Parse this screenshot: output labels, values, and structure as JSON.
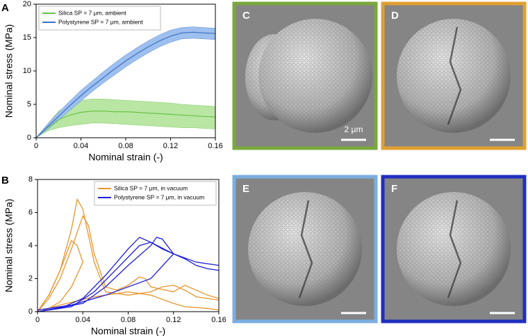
{
  "chart_data": [
    {
      "type": "line",
      "panel": "A",
      "xlabel": "Nominal strain (-)",
      "ylabel": "Nominal stress (MPa)",
      "x": [
        0,
        0.01,
        0.02,
        0.03,
        0.04,
        0.05,
        0.06,
        0.07,
        0.08,
        0.09,
        0.1,
        0.11,
        0.12,
        0.13,
        0.14,
        0.15,
        0.16
      ],
      "xlim": [
        0,
        0.16
      ],
      "xticks": [
        0,
        0.04,
        0.08,
        0.12,
        0.16
      ],
      "ylim": [
        0,
        20
      ],
      "yticks": [
        0,
        5,
        10,
        15,
        20
      ],
      "legend": "upper left",
      "series": [
        {
          "name": "Silica SP = 7 μm, ambient",
          "color": "#6cc24a",
          "band_color": "#b9e6a3",
          "values": [
            0,
            1.5,
            2.7,
            3.4,
            3.8,
            4,
            4,
            3.9,
            3.9,
            3.8,
            3.7,
            3.6,
            3.5,
            3.4,
            3.3,
            3.2,
            3.1
          ],
          "upper": [
            0,
            2,
            4,
            5,
            5.6,
            5.8,
            5.8,
            5.7,
            5.6,
            5.5,
            5.4,
            5.3,
            5.2,
            5,
            4.9,
            4.8,
            4.7
          ],
          "lower": [
            0,
            1,
            1.5,
            1.8,
            2,
            2.2,
            2.2,
            2.1,
            2,
            1.9,
            1.8,
            1.7,
            1.6,
            1.5,
            1.5,
            1.4,
            1.3
          ]
        },
        {
          "name": "Polystyrene SP = 7 μm, ambient",
          "color": "#3f6fc4",
          "band_color": "#9dc0ef",
          "values": [
            0,
            1.6,
            3.2,
            4.8,
            6.3,
            7.7,
            9,
            10.3,
            11.5,
            12.6,
            13.6,
            14.5,
            15.2,
            15.7,
            15.8,
            15.7,
            15.6
          ],
          "upper": [
            0,
            2,
            3.8,
            5.5,
            7.1,
            8.5,
            9.9,
            11.2,
            12.4,
            13.5,
            14.5,
            15.4,
            16.1,
            16.5,
            16.6,
            16.5,
            16.4
          ],
          "lower": [
            0,
            1.2,
            2.6,
            4.1,
            5.5,
            6.9,
            8.2,
            9.4,
            10.6,
            11.7,
            12.7,
            13.6,
            14.3,
            14.8,
            14.9,
            14.8,
            14.7
          ]
        }
      ]
    },
    {
      "type": "line",
      "panel": "B",
      "xlabel": "Nominal strain (-)",
      "ylabel": "Nominal stress (MPa)",
      "xlim": [
        0,
        0.16
      ],
      "xticks": [
        0,
        0.04,
        0.08,
        0.12,
        0.16
      ],
      "ylim": [
        0,
        8
      ],
      "yticks": [
        0,
        2,
        4,
        6,
        8
      ],
      "legend": "upper right",
      "series": [
        {
          "name": "Silica SP = 7 μm, in vacuum",
          "color": "#e8952b",
          "curves": [
            {
              "x": [
                0,
                0.01,
                0.02,
                0.03,
                0.035,
                0.04,
                0.05,
                0.06,
                0.08,
                0.1,
                0.11,
                0.12,
                0.13,
                0.14,
                0.16
              ],
              "y": [
                0,
                1,
                2.5,
                5,
                6.8,
                6.2,
                3,
                1.2,
                1,
                1.2,
                1.5,
                1.6,
                1.3,
                0.9,
                0.7
              ]
            },
            {
              "x": [
                0,
                0.01,
                0.02,
                0.03,
                0.04,
                0.045,
                0.05,
                0.06,
                0.07,
                0.08,
                0.09,
                0.095,
                0.1,
                0.12,
                0.13,
                0.15,
                0.16
              ],
              "y": [
                0,
                0.8,
                2,
                3.8,
                5.8,
                5.2,
                3.5,
                1.5,
                1.3,
                1.6,
                2.1,
                2,
                1.5,
                1.2,
                1.6,
                1,
                0.8
              ]
            },
            {
              "x": [
                0,
                0.01,
                0.02,
                0.03,
                0.035,
                0.04,
                0.03,
                0.02,
                0.01,
                0.005,
                0.02,
                0.05,
                0.08,
                0.1,
                0.12,
                0.13,
                0.15,
                0.16
              ],
              "y": [
                0,
                1,
                2.5,
                4.3,
                4,
                3,
                1.5,
                0.6,
                0.2,
                0.1,
                0.4,
                0.9,
                1.2,
                1,
                0.5,
                0.3,
                0.2,
                0.1
              ]
            }
          ]
        },
        {
          "name": "Polystyrene SP = 7 μm, in vacuum",
          "color": "#1a1adb",
          "curves": [
            {
              "x": [
                0,
                0.02,
                0.04,
                0.06,
                0.08,
                0.09,
                0.1,
                0.12,
                0.14,
                0.15,
                0.16
              ],
              "y": [
                0,
                0.2,
                0.8,
                2.2,
                3.8,
                4.5,
                4.2,
                3.5,
                3,
                2.9,
                2.8
              ]
            },
            {
              "x": [
                0,
                0.03,
                0.05,
                0.07,
                0.09,
                0.1,
                0.11,
                0.13,
                0.14,
                0.15,
                0.16
              ],
              "y": [
                0,
                0.3,
                1.2,
                2.6,
                4,
                4.2,
                3.8,
                3.2,
                2.8,
                2.6,
                2.5
              ]
            },
            {
              "x": [
                0,
                0.04,
                0.06,
                0.08,
                0.1,
                0.105,
                0.11,
                0.12,
                0.1,
                0.06,
                0.03,
                0
              ],
              "y": [
                0,
                0.5,
                1.5,
                2.8,
                4,
                4.5,
                4.4,
                3.5,
                2,
                1,
                0.4,
                0.1
              ]
            }
          ]
        }
      ]
    }
  ],
  "images": [
    {
      "label": "C",
      "border_color": "#7aa83c"
    },
    {
      "label": "D",
      "border_color": "#e0a030"
    },
    {
      "label": "E",
      "border_color": "#7aaee0"
    },
    {
      "label": "F",
      "border_color": "#1f2fc0"
    }
  ],
  "scale_bar_label": "2 μm"
}
